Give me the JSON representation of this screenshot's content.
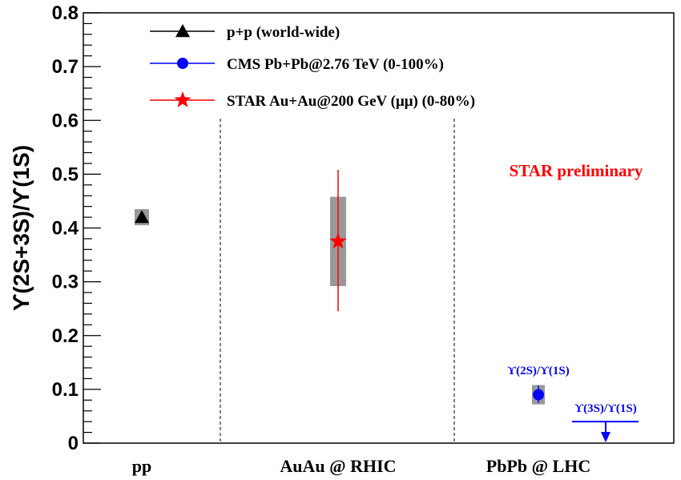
{
  "chart_data": {
    "type": "scatter",
    "ylabel": "ϒ(2S+3S)/ϒ(1S)",
    "xlabel": "",
    "ylim": [
      0,
      0.8
    ],
    "yticks": [
      "0",
      "0.1",
      "0.2",
      "0.3",
      "0.4",
      "0.5",
      "0.6",
      "0.7",
      "0.8"
    ],
    "categories": [
      "pp",
      "AuAu @ RHIC",
      "PbPb @ LHC"
    ],
    "legend": {
      "position": "top-left",
      "entries": [
        {
          "label": "p+p (world-wide)",
          "marker": "triangle",
          "color": "#000000"
        },
        {
          "label": "CMS Pb+Pb@2.76 TeV (0-100%)",
          "marker": "circle",
          "color": "#0000ff"
        },
        {
          "label": "STAR Au+Au@200 GeV (μμ) (0-80%)",
          "marker": "star",
          "color": "#ff0000"
        }
      ]
    },
    "series": [
      {
        "name": "p+p (world-wide)",
        "category": "pp",
        "y": 0.42,
        "sys_low": 0.405,
        "sys_high": 0.435,
        "marker": "triangle",
        "color": "#000000"
      },
      {
        "name": "STAR Au+Au@200 GeV (μμ) (0-80%)",
        "category": "AuAu @ RHIC",
        "y": 0.375,
        "stat_low": 0.245,
        "stat_high": 0.508,
        "sys_low": 0.292,
        "sys_high": 0.458,
        "marker": "star",
        "color": "#ff0000"
      },
      {
        "name": "CMS Pb+Pb@2.76 TeV (0-100%)",
        "category": "PbPb @ LHC",
        "y": 0.09,
        "stat_low": 0.075,
        "stat_high": 0.107,
        "sys_low": 0.072,
        "sys_high": 0.108,
        "marker": "circle",
        "color": "#0000ff",
        "annotation": "ϒ(2S)/ϒ(1S)"
      },
      {
        "name": "CMS Pb+Pb@2.76 TeV (0-100%)",
        "category": "PbPb @ LHC",
        "upper_limit": 0.04,
        "color": "#0000ff",
        "annotation": "ϒ(3S)/ϒ(1S)"
      }
    ],
    "annotations": [
      {
        "text": "STAR preliminary",
        "color": "#ff0000"
      }
    ],
    "grid": false
  }
}
